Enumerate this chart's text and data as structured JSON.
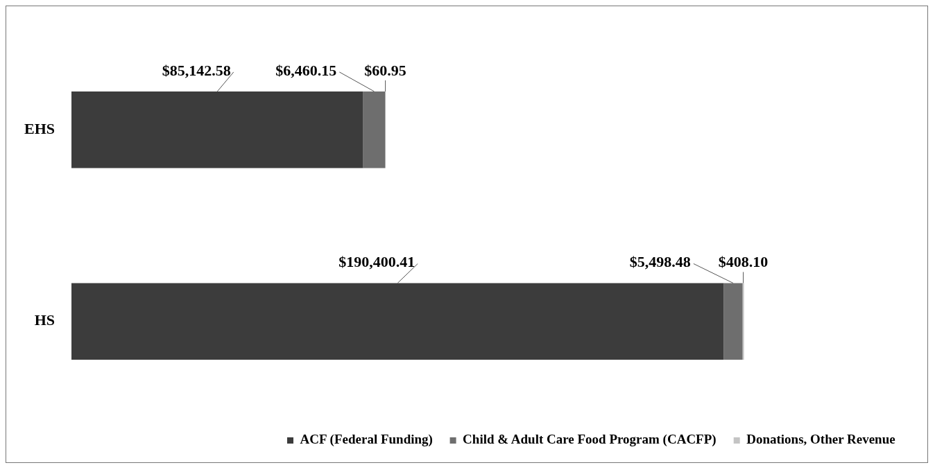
{
  "chart_data": {
    "type": "bar",
    "orientation": "horizontal",
    "stacked": true,
    "categories": [
      "EHS",
      "HS"
    ],
    "legend": "bottom",
    "grid": false,
    "tick_labels": "y",
    "series": [
      {
        "name": "ACF (Federal Funding)",
        "color": "#3c3c3c",
        "values": [
          85142.58,
          190400.41
        ],
        "value_labels": [
          "$85,142.58",
          "$190,400.41"
        ]
      },
      {
        "name": "Child & Adult Care Food Program (CACFP)",
        "color": "#6e6e6e",
        "values": [
          6460.15,
          5498.48
        ],
        "value_labels": [
          "$6,460.15",
          "$5,498.48"
        ]
      },
      {
        "name": "Donations, Other Revenue",
        "color": "#c4c4c4",
        "values": [
          60.95,
          408.1
        ],
        "value_labels": [
          "$60.95",
          "$408.10"
        ]
      }
    ]
  }
}
